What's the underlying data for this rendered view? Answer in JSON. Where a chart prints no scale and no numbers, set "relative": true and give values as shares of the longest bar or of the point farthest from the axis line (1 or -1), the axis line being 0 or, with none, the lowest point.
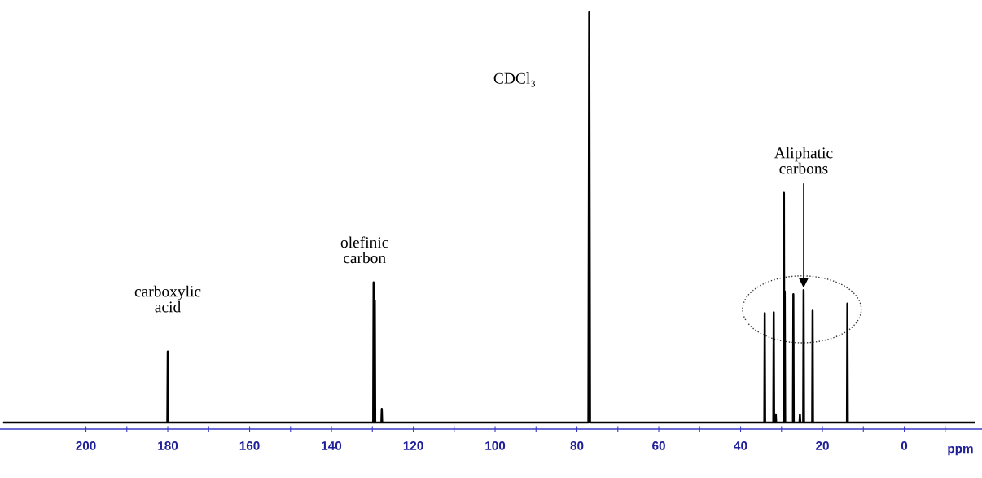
{
  "chart_data": {
    "type": "line",
    "relative": true,
    "xlabel": "ppm",
    "xlim": [
      221,
      -19
    ],
    "xticks": [
      200,
      {
        "value": 190,
        "label": null
      },
      180,
      {
        "value": 170,
        "label": null
      },
      160,
      {
        "value": 150,
        "label": null
      },
      140,
      {
        "value": 130,
        "label": null
      },
      120,
      {
        "value": 110,
        "label": null
      },
      100,
      {
        "value": 90,
        "label": null
      },
      80,
      {
        "value": 70,
        "label": null
      },
      60,
      {
        "value": 50,
        "label": null
      },
      40,
      {
        "value": 30,
        "label": null
      },
      20,
      {
        "value": 10,
        "label": null
      },
      0,
      {
        "value": -10,
        "label": null
      }
    ],
    "grid": false,
    "legend": false,
    "marker": "none",
    "line_style": "solid",
    "series": [
      {
        "color": "#000000",
        "x": [
          220,
          180.1,
          180,
          179.9,
          129.8,
          129.7,
          129.55,
          129.4,
          129.3,
          127.8,
          127.7,
          127.6,
          77.2,
          77,
          76.8,
          34.2,
          34.1,
          34,
          32,
          31.9,
          31.8,
          31.5,
          31.4,
          31.3,
          29.5,
          29.4,
          29.3,
          29.2,
          29.1,
          27.2,
          27.1,
          27,
          25.6,
          25.5,
          25.4,
          24.7,
          24.6,
          24.5,
          22.5,
          22.4,
          22.3,
          14,
          13.9,
          13.8,
          -17
        ],
        "values": [
          0,
          0,
          0.173,
          0,
          0,
          0.342,
          0,
          0.297,
          0,
          0,
          0.033,
          0,
          0,
          1,
          0,
          0,
          0.267,
          0,
          0,
          0.269,
          0,
          0,
          0.02,
          0,
          0,
          0.56,
          0,
          0.32,
          0,
          0,
          0.313,
          0,
          0,
          0.02,
          0,
          0,
          0.323,
          0,
          0,
          0.273,
          0,
          0,
          0.29,
          0,
          0
        ]
      }
    ],
    "annotations": [
      {
        "text": "carboxylic\nacid",
        "x": 180,
        "y": 0.173
      },
      {
        "text": "olefinic\ncarbon",
        "x": 129.7,
        "y": 0.342
      },
      "CDCl₃",
      {
        "text": "Aliphatic\ncarbons",
        "x": 24.6,
        "y": 0.323
      }
    ]
  }
}
